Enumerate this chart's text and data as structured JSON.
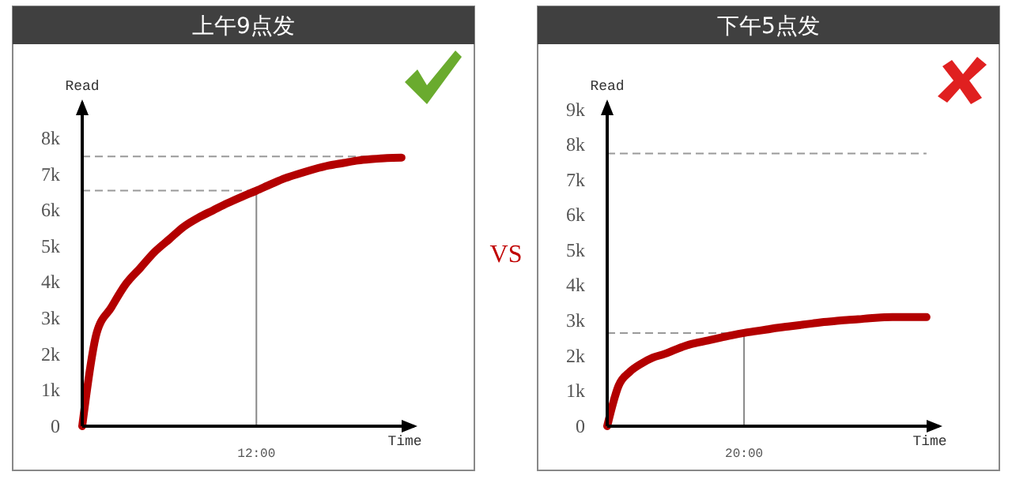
{
  "chart_data": [
    {
      "type": "line",
      "title": "上午9点发",
      "xlabel": "Time",
      "ylabel": "Read",
      "categories": [
        null,
        null,
        null,
        null,
        null,
        null,
        null,
        null,
        null,
        null,
        null,
        null,
        "12:00",
        null,
        null,
        null,
        null,
        null,
        null,
        null,
        null,
        null,
        null
      ],
      "ylim": [
        0,
        9000
      ],
      "yticks": [
        {
          "value": 0,
          "label": "0"
        },
        {
          "value": 1000,
          "label": "1k"
        },
        {
          "value": 2000,
          "label": "2k"
        },
        {
          "value": 3000,
          "label": "3k"
        },
        {
          "value": 4000,
          "label": "4k"
        },
        {
          "value": 5000,
          "label": "5k"
        },
        {
          "value": 6000,
          "label": "6k"
        },
        {
          "value": 7000,
          "label": "7k"
        },
        {
          "value": 8000,
          "label": "8k"
        }
      ],
      "marker": "none",
      "line_style": "solid",
      "series": [
        {
          "color": "#b30000",
          "values": [
            0,
            2600,
            3300,
            3950,
            4400,
            4850,
            5200,
            5550,
            5800,
            6000,
            6200,
            6380,
            6550,
            6730,
            6900,
            7030,
            7150,
            7250,
            7320,
            7390,
            7430,
            7460,
            7470
          ]
        }
      ],
      "ref_lines": [
        {
          "axis": "y",
          "value": 7500,
          "color": "#999999",
          "line_style": "dashed"
        },
        {
          "axis": "y",
          "value": 6550,
          "color": "#999999",
          "line_style": "dashed"
        },
        {
          "axis": "x",
          "value": "12:00",
          "color": "#888888",
          "line_style": "solid"
        }
      ]
    },
    {
      "type": "other",
      "title": "VS"
    },
    {
      "type": "line",
      "title": "下午5点发",
      "xlabel": "Time",
      "ylabel": "Read",
      "categories": [
        null,
        null,
        null,
        null,
        null,
        null,
        null,
        null,
        null,
        null,
        null,
        null,
        "20:00",
        null,
        null,
        null,
        null,
        null,
        null,
        null,
        null,
        null,
        null,
        null,
        null,
        null,
        null,
        null,
        null
      ],
      "ylim": [
        0,
        9200
      ],
      "yticks": [
        {
          "value": 0,
          "label": "0"
        },
        {
          "value": 1000,
          "label": "1k"
        },
        {
          "value": 2000,
          "label": "2k"
        },
        {
          "value": 3000,
          "label": "3k"
        },
        {
          "value": 4000,
          "label": "4k"
        },
        {
          "value": 5000,
          "label": "5k"
        },
        {
          "value": 6000,
          "label": "6k"
        },
        {
          "value": 7000,
          "label": "7k"
        },
        {
          "value": 8000,
          "label": "8k"
        },
        {
          "value": 9000,
          "label": "9k"
        }
      ],
      "marker": "none",
      "line_style": "solid",
      "series": [
        {
          "color": "#b30000",
          "values": [
            0,
            1150,
            1550,
            1780,
            1950,
            2050,
            2180,
            2300,
            2380,
            2450,
            2520,
            2590,
            2650,
            2700,
            2750,
            2800,
            2840,
            2880,
            2920,
            2960,
            2990,
            3020,
            3040,
            3070,
            3090,
            3100,
            3100,
            3100,
            3100
          ]
        }
      ],
      "ref_lines": [
        {
          "axis": "y",
          "value": 7750,
          "color": "#999999",
          "line_style": "dashed"
        },
        {
          "axis": "y",
          "value": 2650,
          "color": "#999999",
          "line_style": "dashed"
        },
        {
          "axis": "x",
          "value": "20:00",
          "color": "#888888",
          "line_style": "solid"
        }
      ]
    }
  ]
}
